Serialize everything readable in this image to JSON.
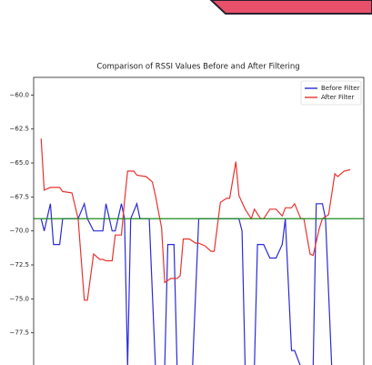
{
  "chart_data": {
    "type": "line",
    "title": "Comparison of RSSI Values Before and After Filtering",
    "xlim": [
      -2.4,
      104.4
    ],
    "ylim": [
      -79.6,
      -58.7
    ],
    "yticks": [
      {
        "value": -60,
        "label": "−60.0"
      },
      {
        "value": -62.5,
        "label": "−62.5"
      },
      {
        "value": -65,
        "label": "−65.0"
      },
      {
        "value": -67.5,
        "label": "−67.5"
      },
      {
        "value": -70,
        "label": "−70.0"
      },
      {
        "value": -72.5,
        "label": "−72.5"
      },
      {
        "value": -75,
        "label": "−75.0"
      },
      {
        "value": -77.5,
        "label": "−77.5"
      }
    ],
    "reference_line": {
      "value": -69.1,
      "color": "#1f8a1f"
    },
    "legend": "upper right",
    "series": [
      {
        "name": "Before Filter",
        "color": "#2b2bd9",
        "x": [
          0,
          1,
          3,
          4,
          6,
          7,
          12,
          14,
          15,
          17,
          20,
          21,
          23,
          24,
          26,
          27,
          28,
          29,
          31,
          32,
          35,
          37,
          40,
          41,
          43,
          44,
          49,
          51,
          64,
          65,
          66,
          69,
          70,
          72,
          74,
          76,
          78,
          79,
          81,
          82,
          84,
          88,
          89,
          91,
          92,
          94
        ],
        "values": [
          -69.1,
          -70,
          -68,
          -71,
          -71,
          -69.1,
          -69.1,
          -68,
          -69.1,
          -70,
          -70,
          -68,
          -70,
          -70,
          -68,
          -69.1,
          -80,
          -69.1,
          -68,
          -69.1,
          -69.1,
          -80,
          -80,
          -71,
          -71,
          -80,
          -80,
          -69.1,
          -69.1,
          -70,
          -80,
          -80,
          -71,
          -71,
          -72,
          -72,
          -71,
          -69.1,
          -78.8,
          -78.8,
          -80,
          -80,
          -68,
          -68,
          -69.1,
          -80
        ]
      },
      {
        "name": "After Filter",
        "color": "#e8332f",
        "x": [
          0,
          1,
          3,
          4,
          6,
          7,
          10,
          12,
          14,
          15,
          17,
          19,
          20,
          21,
          23,
          24,
          26,
          27,
          28,
          30,
          31,
          34,
          36,
          37,
          39,
          40,
          42,
          44,
          45,
          46,
          48,
          50,
          51,
          53,
          55,
          56,
          58,
          60,
          61,
          63,
          64,
          66,
          68,
          69,
          71,
          72,
          74,
          75,
          76,
          78,
          79,
          81,
          82,
          84,
          85,
          87,
          88,
          90,
          91,
          93,
          95,
          96,
          98,
          100
        ],
        "values": [
          -63.2,
          -67,
          -66.8,
          -66.8,
          -66.8,
          -67.1,
          -67.2,
          -69.1,
          -75.1,
          -75.1,
          -71.7,
          -72.1,
          -72.1,
          -72.2,
          -72.2,
          -70.3,
          -70.3,
          -67.8,
          -65.6,
          -65.6,
          -65.9,
          -66,
          -66.4,
          -67.4,
          -69.8,
          -73.8,
          -73.5,
          -73.5,
          -73.3,
          -70.6,
          -70.6,
          -70.9,
          -70.9,
          -71.1,
          -71.5,
          -71.5,
          -67.9,
          -67.6,
          -67.6,
          -64.9,
          -67.4,
          -68.4,
          -69.1,
          -68.4,
          -69.1,
          -69.1,
          -68.4,
          -68.4,
          -68.4,
          -68.9,
          -68.3,
          -68.3,
          -68,
          -69.1,
          -69.1,
          -71.7,
          -71.8,
          -69.8,
          -69.1,
          -68.8,
          -65.8,
          -66,
          -65.6,
          -65.5
        ]
      }
    ]
  }
}
